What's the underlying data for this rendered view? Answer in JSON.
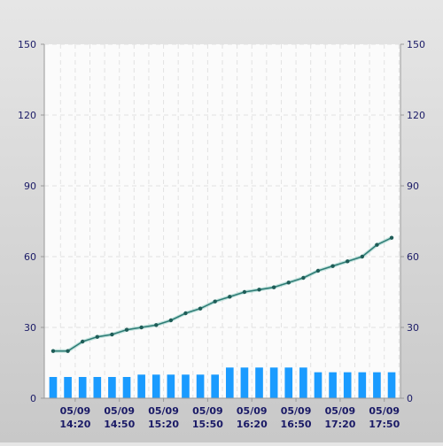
{
  "chart_data": {
    "type": "bar+line",
    "x_labels": [
      {
        "date": "05/09",
        "time": "14:20"
      },
      {
        "date": "05/09",
        "time": "14:50"
      },
      {
        "date": "05/09",
        "time": "15:20"
      },
      {
        "date": "05/09",
        "time": "15:50"
      },
      {
        "date": "05/09",
        "time": "16:20"
      },
      {
        "date": "05/09",
        "time": "16:50"
      },
      {
        "date": "05/09",
        "time": "17:20"
      },
      {
        "date": "05/09",
        "time": "17:50"
      }
    ],
    "bars": [
      9,
      9,
      9,
      9,
      9,
      9,
      10,
      10,
      10,
      10,
      10,
      10,
      13,
      13,
      13,
      13,
      13,
      13,
      11,
      11,
      11,
      11,
      11,
      11
    ],
    "line": [
      20,
      20,
      24,
      26,
      27,
      29,
      30,
      31,
      33,
      36,
      38,
      41,
      43,
      45,
      46,
      47,
      49,
      51,
      54,
      56,
      58,
      60,
      65,
      68
    ],
    "ylim": [
      0,
      150
    ],
    "yticks": [
      0,
      30,
      60,
      90,
      120,
      150
    ],
    "grid": true,
    "colors": {
      "bar": "#1a9bff",
      "line": "#2f7d76",
      "marker": "#1e5c57",
      "axis_text": "#1a1a66",
      "grid": "#e2e2e2",
      "plot_bg": "#fbfbfb"
    }
  }
}
